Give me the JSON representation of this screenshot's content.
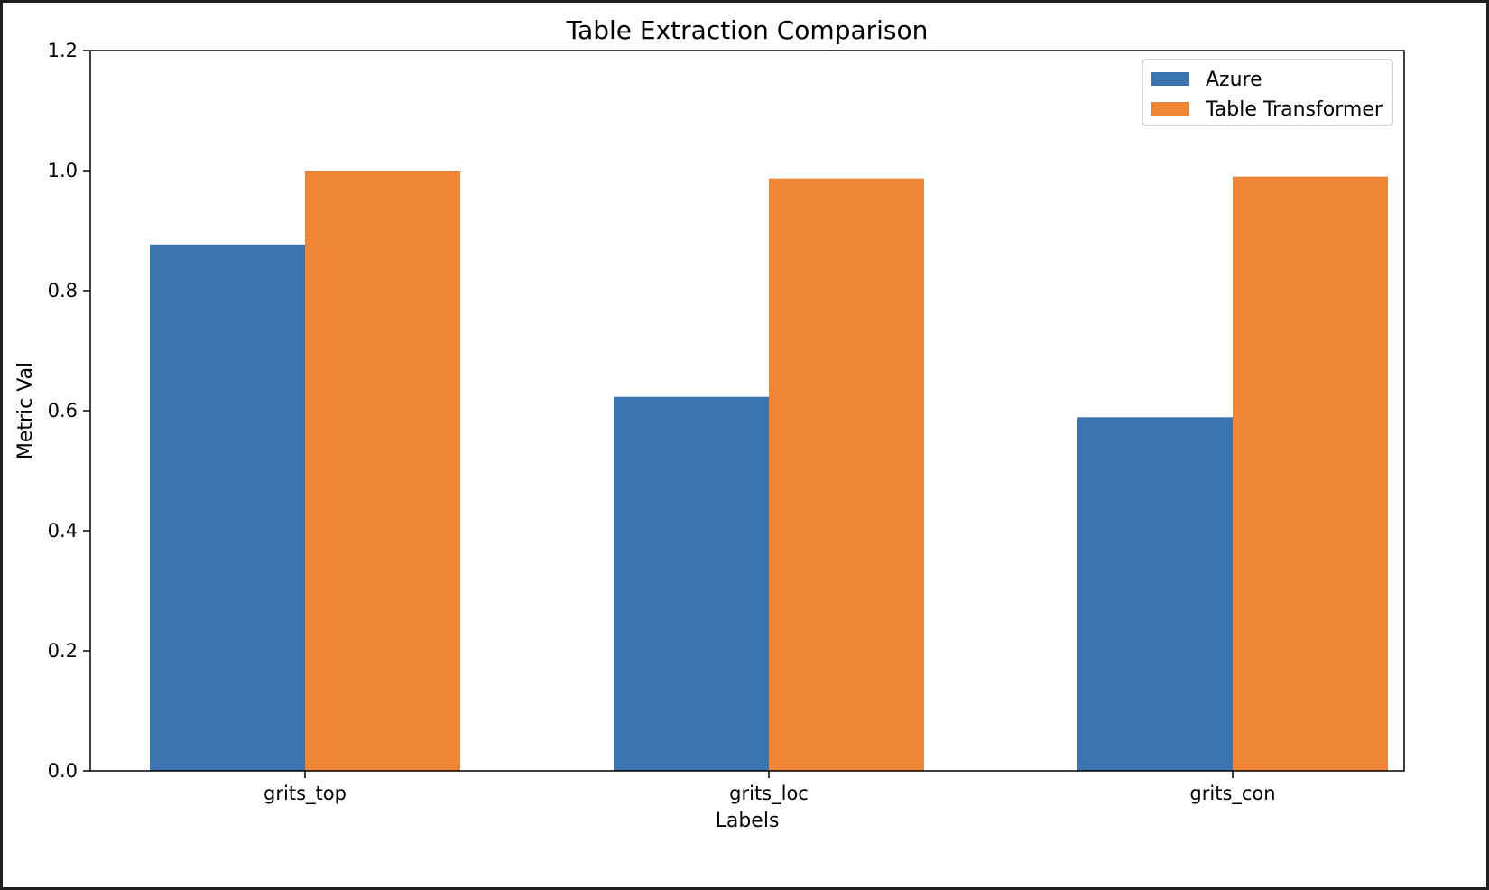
{
  "chart_data": {
    "type": "bar",
    "title": "Table Extraction Comparison",
    "xlabel": "Labels",
    "ylabel": "Metric Val",
    "categories": [
      "grits_top",
      "grits_loc",
      "grits_con"
    ],
    "series": [
      {
        "name": "Azure",
        "color": "#3b75af",
        "values": [
          0.877,
          0.623,
          0.589
        ]
      },
      {
        "name": "Table Transformer",
        "color": "#ef8636",
        "values": [
          1.0,
          0.987,
          0.99
        ]
      }
    ],
    "ylim": [
      0,
      1.2
    ],
    "yticks": [
      0.0,
      0.2,
      0.4,
      0.6,
      0.8,
      1.0,
      1.2
    ],
    "ytick_labels": [
      "0.0",
      "0.2",
      "0.4",
      "0.6",
      "0.8",
      "1.0",
      "1.2"
    ],
    "grid": false,
    "legend_position": "top-right"
  }
}
